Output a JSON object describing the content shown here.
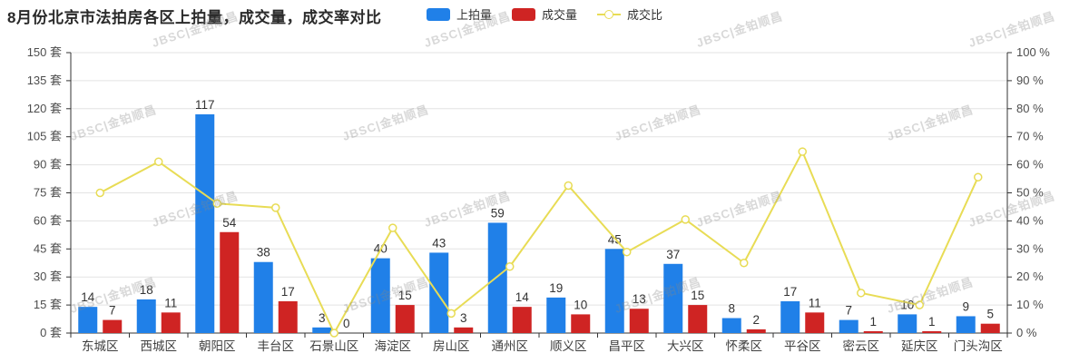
{
  "title": "8月份北京市法拍房各区上拍量，成交量，成交率对比",
  "watermark_text": "JBSC|金铂顺昌",
  "colors": {
    "bar_listed": "#2080e8",
    "bar_sold": "#cf2423",
    "rate_line": "#e8dc55",
    "grid": "#e3e3e3",
    "axis": "#333333",
    "tick_label": "#4d4d4d",
    "value_label": "#333333",
    "x_label": "#404040"
  },
  "legend": [
    {
      "label": "上拍量",
      "type": "bar",
      "color": "#2080e8"
    },
    {
      "label": "成交量",
      "type": "bar",
      "color": "#cf2423"
    },
    {
      "label": "成交比",
      "type": "line",
      "color": "#e8dc55"
    }
  ],
  "chart_data": {
    "type": "bar",
    "subtype": "grouped-bars-with-line",
    "categories": [
      "东城区",
      "西城区",
      "朝阳区",
      "丰台区",
      "石景山区",
      "海淀区",
      "房山区",
      "通州区",
      "顺义区",
      "昌平区",
      "大兴区",
      "怀柔区",
      "平谷区",
      "密云区",
      "延庆区",
      "门头沟区"
    ],
    "series": [
      {
        "name": "上拍量",
        "type": "bar",
        "axis": "left",
        "color": "#2080e8",
        "values": [
          14,
          18,
          117,
          38,
          3,
          40,
          43,
          59,
          19,
          45,
          37,
          8,
          17,
          7,
          10,
          9
        ]
      },
      {
        "name": "成交量",
        "type": "bar",
        "axis": "left",
        "color": "#cf2423",
        "values": [
          7,
          11,
          54,
          17,
          0,
          15,
          3,
          14,
          10,
          13,
          15,
          2,
          11,
          1,
          1,
          5
        ]
      },
      {
        "name": "成交比",
        "type": "line",
        "axis": "right",
        "color": "#e8dc55",
        "values": [
          50,
          61.1,
          46.2,
          44.7,
          0,
          37.5,
          7,
          23.7,
          52.6,
          28.9,
          40.5,
          25,
          64.7,
          14.3,
          10,
          55.6
        ]
      }
    ],
    "left_axis": {
      "min": 0,
      "max": 150,
      "step": 15,
      "unit": "套",
      "label_format": "{v} 套"
    },
    "right_axis": {
      "min": 0,
      "max": 100,
      "step": 10,
      "unit": "%",
      "label_format": "{v} %"
    },
    "grid": true,
    "legend_position": "top-center",
    "bar_value_labels": true
  }
}
